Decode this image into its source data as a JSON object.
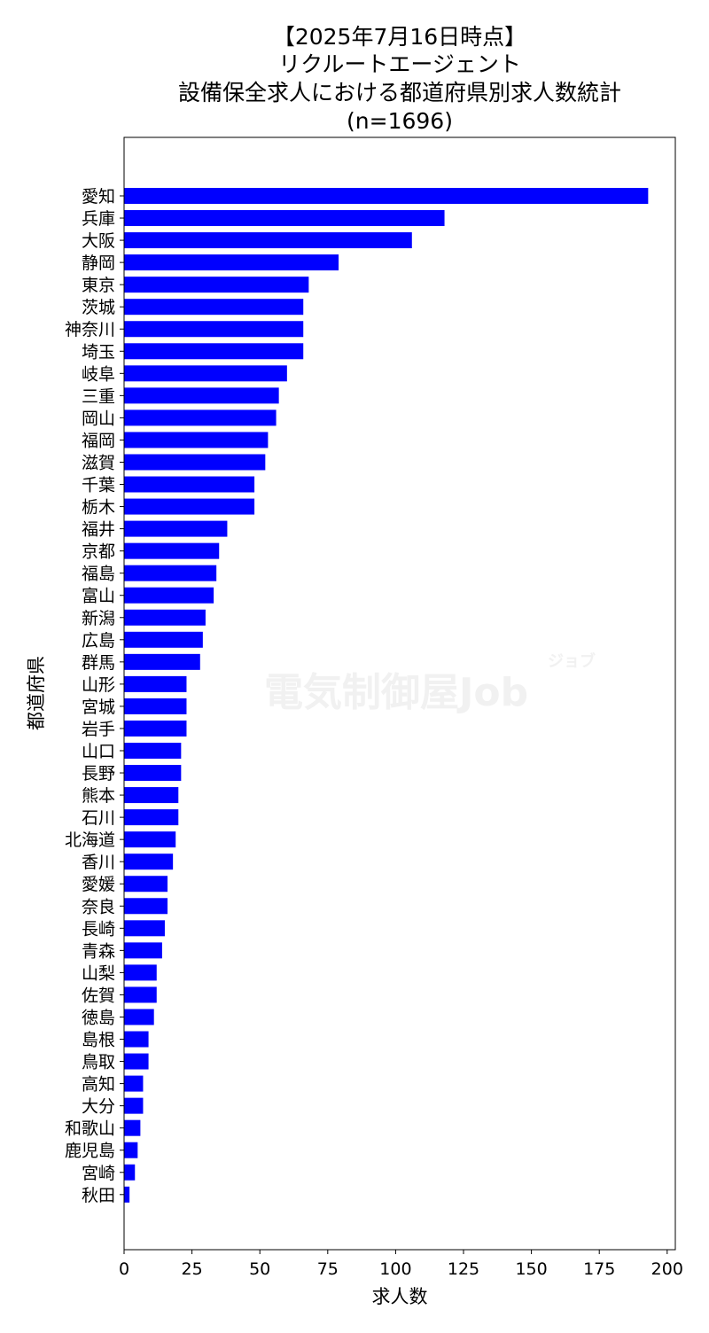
{
  "chart_data": {
    "type": "bar",
    "orientation": "horizontal",
    "title": [
      "【2025年7月16日時点】",
      "リクルートエージェント",
      "設備保全求人における都道府県別求人数統計",
      "(n=1696)"
    ],
    "xlabel": "求人数",
    "ylabel": "都道府県",
    "xlim": [
      0,
      203
    ],
    "xticks": [
      0,
      25,
      50,
      75,
      100,
      125,
      150,
      175,
      200
    ],
    "grid": false,
    "bar_color": "#0000ff",
    "watermark": "電気制御屋Job",
    "watermark_small": "ジョブ",
    "categories": [
      "愛知",
      "兵庫",
      "大阪",
      "静岡",
      "東京",
      "茨城",
      "神奈川",
      "埼玉",
      "岐阜",
      "三重",
      "岡山",
      "福岡",
      "滋賀",
      "千葉",
      "栃木",
      "福井",
      "京都",
      "福島",
      "富山",
      "新潟",
      "広島",
      "群馬",
      "山形",
      "宮城",
      "岩手",
      "山口",
      "長野",
      "熊本",
      "石川",
      "北海道",
      "香川",
      "愛媛",
      "奈良",
      "長崎",
      "青森",
      "山梨",
      "佐賀",
      "徳島",
      "島根",
      "鳥取",
      "高知",
      "大分",
      "和歌山",
      "鹿児島",
      "宮崎",
      "秋田"
    ],
    "values": [
      193,
      118,
      106,
      79,
      68,
      66,
      66,
      66,
      60,
      57,
      56,
      53,
      52,
      48,
      48,
      38,
      35,
      34,
      33,
      30,
      29,
      28,
      23,
      23,
      23,
      21,
      21,
      20,
      20,
      19,
      18,
      16,
      16,
      15,
      14,
      12,
      12,
      11,
      9,
      9,
      7,
      7,
      6,
      5,
      4,
      2
    ]
  }
}
